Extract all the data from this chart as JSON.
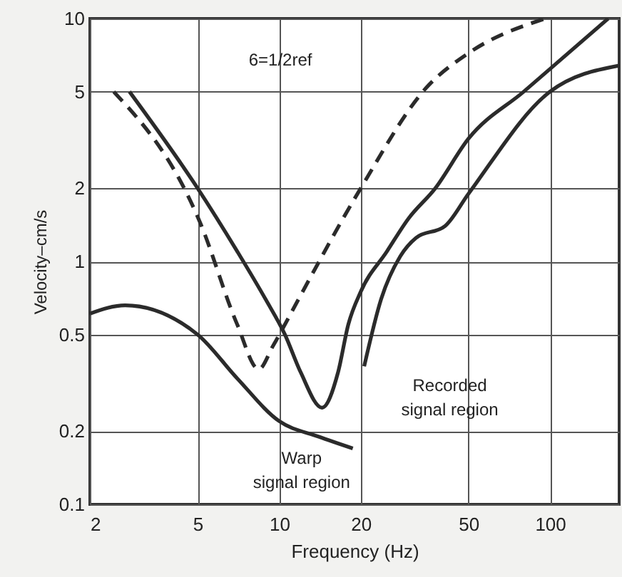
{
  "chart_data": {
    "type": "line",
    "xlabel": "Frequency (Hz)",
    "ylabel": "Velocity–cm/s",
    "log": "xy",
    "grid": true,
    "marker": "none",
    "xlim": [
      2,
      180
    ],
    "xticks": [
      2,
      5,
      10,
      20,
      50,
      100
    ],
    "ylim": [
      0.1,
      10
    ],
    "yticks": [
      0.1,
      0.2,
      0.5,
      1,
      2,
      5,
      10
    ],
    "annotations": [
      "6=1/2ref",
      "Warp\nsignal region",
      "Recorded\nsignal region"
    ],
    "series": [
      {
        "color": "#2b2b2b",
        "line_style": "solid",
        "x": [
          2.8,
          5,
          7,
          8.9,
          10.5,
          12,
          14.4,
          16.5,
          18,
          20,
          25,
          30,
          37.7,
          50,
          80,
          164
        ],
        "values": [
          5,
          2,
          1.1,
          0.7,
          0.5,
          0.35,
          0.25,
          0.35,
          0.55,
          0.75,
          1.1,
          1.5,
          2,
          3.2,
          5,
          10
        ]
      },
      {
        "color": "#2b2b2b",
        "line_style": "dashed",
        "x": [
          2.45,
          5.1,
          7,
          8.4,
          9.5,
          10.5,
          11.8,
          20,
          35,
          50,
          96
        ],
        "values": [
          5,
          1.45,
          0.55,
          0.36,
          0.45,
          0.55,
          0.7,
          2,
          5.2,
          7.2,
          10
        ]
      },
      {
        "color": "#2b2b2b",
        "line_style": "solid",
        "x": [
          20.6,
          23.8,
          28,
          32,
          41,
          50,
          100,
          180
        ],
        "values": [
          0.37,
          0.7,
          1.05,
          1.25,
          1.4,
          1.9,
          5,
          6.4
        ]
      },
      {
        "color": "#2b2b2b",
        "line_style": "solid",
        "x": [
          2,
          2.7,
          5,
          7,
          10,
          14,
          18.7
        ],
        "values": [
          0.61,
          0.66,
          0.5,
          0.33,
          0.22,
          0.19,
          0.17
        ]
      }
    ]
  }
}
